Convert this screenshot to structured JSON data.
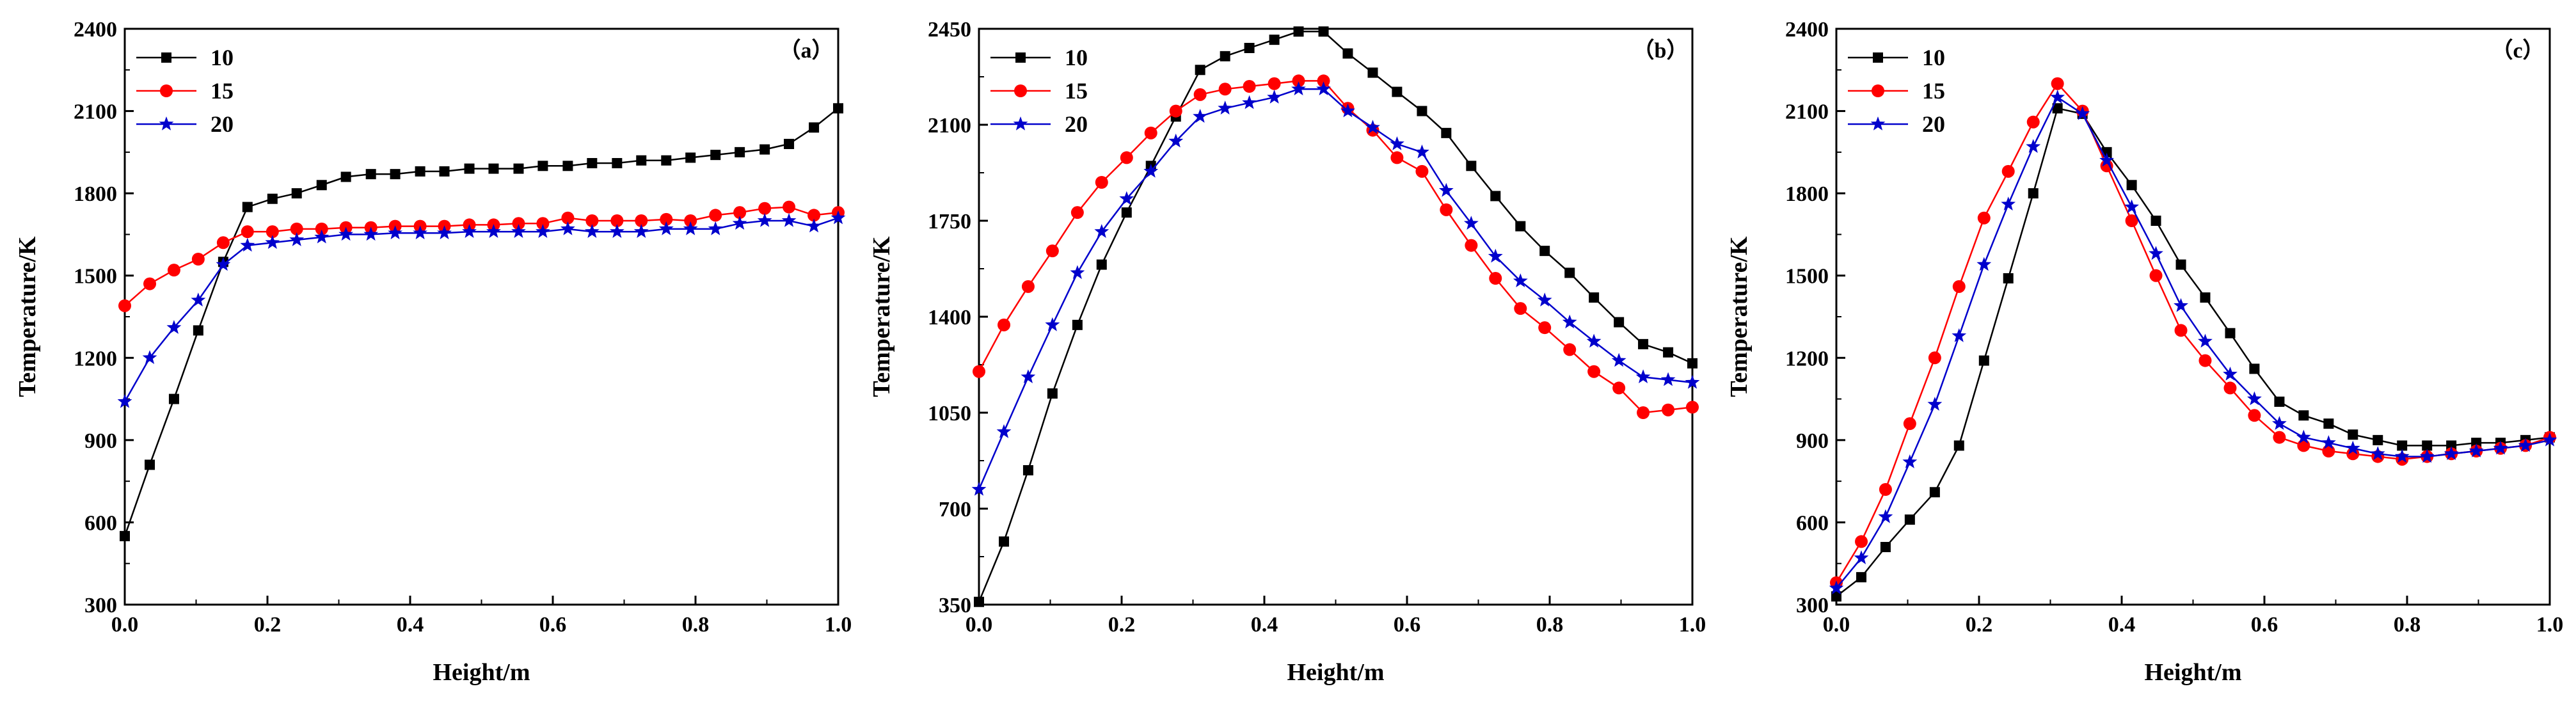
{
  "figure": {
    "background": "#ffffff"
  },
  "chart_data": [
    {
      "type": "line",
      "panel_label": "（a）",
      "xlabel": "Height/m",
      "ylabel": "Temperature/K",
      "xlim": [
        0.0,
        1.0
      ],
      "ylim": [
        300,
        2400
      ],
      "xticks": [
        "0.0",
        "0.2",
        "0.4",
        "0.6",
        "0.8",
        "1.0"
      ],
      "yticks": [
        "300",
        "600",
        "900",
        "1200",
        "1500",
        "1800",
        "2100",
        "2400"
      ],
      "legend": {
        "position": "top-left"
      },
      "x": [
        0.0,
        0.035,
        0.069,
        0.103,
        0.138,
        0.172,
        0.207,
        0.241,
        0.276,
        0.31,
        0.345,
        0.379,
        0.414,
        0.448,
        0.483,
        0.517,
        0.552,
        0.586,
        0.621,
        0.655,
        0.69,
        0.724,
        0.759,
        0.793,
        0.828,
        0.862,
        0.897,
        0.931,
        0.966,
        1.0
      ],
      "series": [
        {
          "name": "10",
          "color": "#000000",
          "marker": "square",
          "values": [
            550,
            810,
            1050,
            1300,
            1550,
            1750,
            1780,
            1800,
            1830,
            1860,
            1870,
            1870,
            1880,
            1880,
            1890,
            1890,
            1890,
            1900,
            1900,
            1910,
            1910,
            1920,
            1920,
            1930,
            1940,
            1950,
            1960,
            1980,
            2040,
            2110
          ]
        },
        {
          "name": "15",
          "color": "#ff0000",
          "marker": "circle",
          "values": [
            1390,
            1470,
            1520,
            1560,
            1620,
            1660,
            1660,
            1670,
            1670,
            1675,
            1675,
            1680,
            1680,
            1680,
            1685,
            1685,
            1690,
            1690,
            1710,
            1700,
            1700,
            1700,
            1705,
            1700,
            1720,
            1730,
            1745,
            1750,
            1720,
            1730
          ]
        },
        {
          "name": "20",
          "color": "#0000cc",
          "marker": "star",
          "values": [
            1040,
            1200,
            1310,
            1410,
            1540,
            1610,
            1620,
            1630,
            1640,
            1650,
            1650,
            1655,
            1655,
            1655,
            1660,
            1660,
            1660,
            1660,
            1670,
            1660,
            1660,
            1660,
            1670,
            1670,
            1670,
            1690,
            1700,
            1700,
            1680,
            1710
          ]
        }
      ]
    },
    {
      "type": "line",
      "panel_label": "（b）",
      "xlabel": "Height/m",
      "ylabel": "Temperature/K",
      "xlim": [
        0.0,
        1.0
      ],
      "ylim": [
        350,
        2450
      ],
      "xticks": [
        "0.0",
        "0.2",
        "0.4",
        "0.6",
        "0.8",
        "1.0"
      ],
      "yticks": [
        "350",
        "700",
        "1050",
        "1400",
        "1750",
        "2100",
        "2450"
      ],
      "legend": {
        "position": "top-left"
      },
      "x": [
        0.0,
        0.035,
        0.069,
        0.103,
        0.138,
        0.172,
        0.207,
        0.241,
        0.276,
        0.31,
        0.345,
        0.379,
        0.414,
        0.448,
        0.483,
        0.517,
        0.552,
        0.586,
        0.621,
        0.655,
        0.69,
        0.724,
        0.759,
        0.793,
        0.828,
        0.862,
        0.897,
        0.931,
        0.966,
        1.0
      ],
      "series": [
        {
          "name": "10",
          "color": "#000000",
          "marker": "square",
          "values": [
            360,
            580,
            840,
            1120,
            1370,
            1590,
            1780,
            1950,
            2130,
            2300,
            2350,
            2380,
            2410,
            2440,
            2440,
            2360,
            2290,
            2220,
            2150,
            2070,
            1950,
            1840,
            1730,
            1640,
            1560,
            1470,
            1380,
            1300,
            1270,
            1230
          ]
        },
        {
          "name": "15",
          "color": "#ff0000",
          "marker": "circle",
          "values": [
            1200,
            1370,
            1510,
            1640,
            1780,
            1890,
            1980,
            2070,
            2150,
            2210,
            2230,
            2240,
            2250,
            2260,
            2260,
            2160,
            2080,
            1980,
            1930,
            1790,
            1660,
            1540,
            1430,
            1360,
            1280,
            1200,
            1140,
            1050,
            1060,
            1070
          ]
        },
        {
          "name": "20",
          "color": "#0000cc",
          "marker": "star",
          "values": [
            770,
            980,
            1180,
            1370,
            1560,
            1710,
            1830,
            1930,
            2040,
            2130,
            2160,
            2180,
            2200,
            2230,
            2230,
            2150,
            2090,
            2030,
            2000,
            1860,
            1740,
            1620,
            1530,
            1460,
            1380,
            1310,
            1240,
            1180,
            1170,
            1160
          ]
        }
      ]
    },
    {
      "type": "line",
      "panel_label": "（c）",
      "xlabel": "Height/m",
      "ylabel": "Temperature/K",
      "xlim": [
        0.0,
        1.0
      ],
      "ylim": [
        300,
        2400
      ],
      "xticks": [
        "0.0",
        "0.2",
        "0.4",
        "0.6",
        "0.8",
        "1.0"
      ],
      "yticks": [
        "300",
        "600",
        "900",
        "1200",
        "1500",
        "1800",
        "2100",
        "2400"
      ],
      "legend": {
        "position": "top-left"
      },
      "x": [
        0.0,
        0.035,
        0.069,
        0.103,
        0.138,
        0.172,
        0.207,
        0.241,
        0.276,
        0.31,
        0.345,
        0.379,
        0.414,
        0.448,
        0.483,
        0.517,
        0.552,
        0.586,
        0.621,
        0.655,
        0.69,
        0.724,
        0.759,
        0.793,
        0.828,
        0.862,
        0.897,
        0.931,
        0.966,
        1.0
      ],
      "series": [
        {
          "name": "10",
          "color": "#000000",
          "marker": "square",
          "values": [
            330,
            400,
            510,
            610,
            710,
            880,
            1190,
            1490,
            1800,
            2110,
            2090,
            1950,
            1830,
            1700,
            1540,
            1420,
            1290,
            1160,
            1040,
            990,
            960,
            920,
            900,
            880,
            880,
            880,
            890,
            890,
            900,
            910
          ]
        },
        {
          "name": "15",
          "color": "#ff0000",
          "marker": "circle",
          "values": [
            380,
            530,
            720,
            960,
            1200,
            1460,
            1710,
            1880,
            2060,
            2200,
            2100,
            1900,
            1700,
            1500,
            1300,
            1190,
            1090,
            990,
            910,
            880,
            860,
            850,
            840,
            830,
            840,
            850,
            860,
            870,
            880,
            910
          ]
        },
        {
          "name": "20",
          "color": "#0000cc",
          "marker": "star",
          "values": [
            360,
            470,
            620,
            820,
            1030,
            1280,
            1540,
            1760,
            1970,
            2150,
            2090,
            1920,
            1750,
            1580,
            1390,
            1260,
            1140,
            1050,
            960,
            910,
            890,
            870,
            850,
            840,
            840,
            850,
            860,
            870,
            880,
            900
          ]
        }
      ]
    }
  ]
}
